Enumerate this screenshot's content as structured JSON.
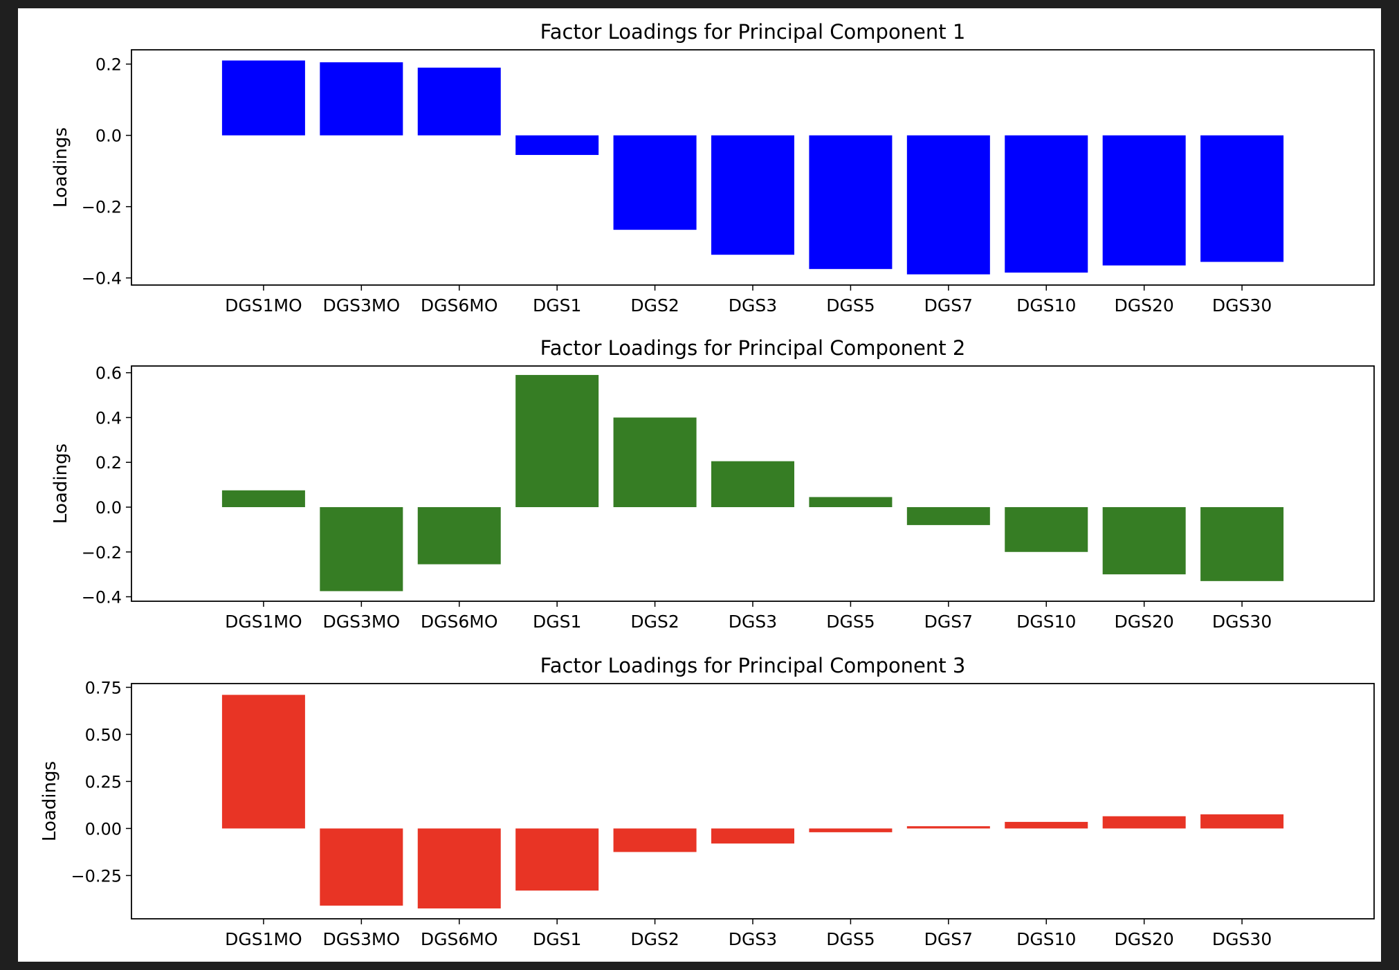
{
  "colors": {
    "background": "#1f1f1f",
    "figure": "#ffffff",
    "pc1": "#0000ff",
    "pc2": "#367d24",
    "pc3": "#e83425"
  },
  "chart_data": [
    {
      "type": "bar",
      "title": "Factor Loadings for Principal Component 1",
      "xlabel": "",
      "ylabel": "Loadings",
      "categories": [
        "DGS1MO",
        "DGS3MO",
        "DGS6MO",
        "DGS1",
        "DGS2",
        "DGS3",
        "DGS5",
        "DGS7",
        "DGS10",
        "DGS20",
        "DGS30"
      ],
      "values": [
        0.21,
        0.205,
        0.19,
        -0.055,
        -0.265,
        -0.335,
        -0.375,
        -0.39,
        -0.385,
        -0.365,
        -0.355
      ],
      "ylim": [
        -0.42,
        0.24
      ],
      "yticks": [
        0.2,
        0.0,
        -0.2,
        -0.4
      ],
      "ytick_labels": [
        "0.2",
        "0.0",
        "−0.2",
        "−0.4"
      ],
      "color": "#0000ff",
      "grid": false
    },
    {
      "type": "bar",
      "title": "Factor Loadings for Principal Component 2",
      "xlabel": "",
      "ylabel": "Loadings",
      "categories": [
        "DGS1MO",
        "DGS3MO",
        "DGS6MO",
        "DGS1",
        "DGS2",
        "DGS3",
        "DGS5",
        "DGS7",
        "DGS10",
        "DGS20",
        "DGS30"
      ],
      "values": [
        0.075,
        -0.375,
        -0.255,
        0.59,
        0.4,
        0.205,
        0.045,
        -0.08,
        -0.2,
        -0.3,
        -0.33
      ],
      "ylim": [
        -0.42,
        0.63
      ],
      "yticks": [
        0.6,
        0.4,
        0.2,
        0.0,
        -0.2,
        -0.4
      ],
      "ytick_labels": [
        "0.6",
        "0.4",
        "0.2",
        "0.0",
        "−0.2",
        "−0.4"
      ],
      "color": "#367d24",
      "grid": false
    },
    {
      "type": "bar",
      "title": "Factor Loadings for Principal Component 3",
      "xlabel": "",
      "ylabel": "Loadings",
      "categories": [
        "DGS1MO",
        "DGS3MO",
        "DGS6MO",
        "DGS1",
        "DGS2",
        "DGS3",
        "DGS5",
        "DGS7",
        "DGS10",
        "DGS20",
        "DGS30"
      ],
      "values": [
        0.71,
        -0.41,
        -0.425,
        -0.33,
        -0.125,
        -0.08,
        -0.02,
        0.012,
        0.035,
        0.065,
        0.075
      ],
      "ylim": [
        -0.48,
        0.77
      ],
      "yticks": [
        0.75,
        0.5,
        0.25,
        0.0,
        -0.25
      ],
      "ytick_labels": [
        "0.75",
        "0.50",
        "0.25",
        "0.00",
        "−0.25"
      ],
      "color": "#e83425",
      "grid": false
    }
  ]
}
